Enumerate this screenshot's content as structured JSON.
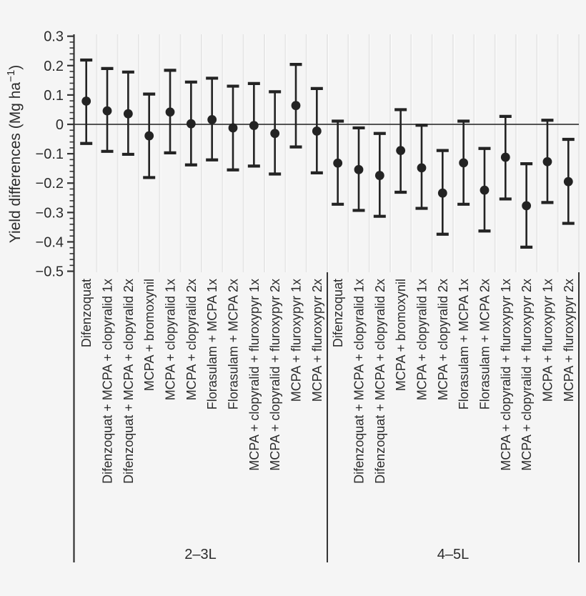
{
  "chart_data": {
    "type": "scatter",
    "subtype": "point-range-errorbar",
    "ylabel_full": "Yield differences (Mg ha−1)",
    "ylabel_main": "Yield differences (Mg ha",
    "ylabel_sup": "−1",
    "ylabel_end": ")",
    "ylim": [
      -0.5035,
      0.3065
    ],
    "yticks": [
      0.3,
      0.2,
      0.1,
      0,
      -0.1,
      -0.2,
      -0.3,
      -0.4,
      -0.5
    ],
    "ytick_labels": [
      "0.3",
      "0.2",
      "0.1",
      "0",
      "−0.1",
      "−0.2",
      "−0.3",
      "−0.4",
      "−0.5"
    ],
    "minor_tick_step": 0.02,
    "zero_reference_line": true,
    "grid": "vertical category separators, light gray",
    "legend": "none",
    "groups": [
      {
        "label": "2–3L",
        "points": [
          {
            "category": "Difenzoquat",
            "estimate": 0.079,
            "lower": -0.065,
            "upper": 0.219
          },
          {
            "category": "Difenzoquat + MCPA + clopyralid 1x",
            "estimate": 0.046,
            "lower": -0.092,
            "upper": 0.19
          },
          {
            "category": "Difenzoquat + MCPA + clopyralid 2x",
            "estimate": 0.036,
            "lower": -0.102,
            "upper": 0.178
          },
          {
            "category": "MCPA + bromoxynil",
            "estimate": -0.039,
            "lower": -0.181,
            "upper": 0.103
          },
          {
            "category": "MCPA + clopyralid 1x",
            "estimate": 0.042,
            "lower": -0.097,
            "upper": 0.184
          },
          {
            "category": "MCPA + clopyralid 2x",
            "estimate": 0.002,
            "lower": -0.138,
            "upper": 0.144
          },
          {
            "category": "Florasulam + MCPA 1x",
            "estimate": 0.016,
            "lower": -0.121,
            "upper": 0.157
          },
          {
            "category": "Florasulam + MCPA 2x",
            "estimate": -0.012,
            "lower": -0.155,
            "upper": 0.13
          },
          {
            "category": "MCPA + clopyralid + fluroxypyr 1x",
            "estimate": -0.004,
            "lower": -0.142,
            "upper": 0.139
          },
          {
            "category": "MCPA + clopyralid + fluroxypyr 2x",
            "estimate": -0.031,
            "lower": -0.169,
            "upper": 0.111
          },
          {
            "category": "MCPA + fluroxypyr 1x",
            "estimate": 0.064,
            "lower": -0.077,
            "upper": 0.204
          },
          {
            "category": "MCPA + fluroxypyr 2x",
            "estimate": -0.023,
            "lower": -0.165,
            "upper": 0.122
          }
        ]
      },
      {
        "label": "4–5L",
        "points": [
          {
            "category": "Difenzoquat",
            "estimate": -0.132,
            "lower": -0.272,
            "upper": 0.011
          },
          {
            "category": "Difenzoquat + MCPA + clopyralid 1x",
            "estimate": -0.154,
            "lower": -0.293,
            "upper": -0.012
          },
          {
            "category": "Difenzoquat + MCPA + clopyralid 2x",
            "estimate": -0.174,
            "lower": -0.313,
            "upper": -0.031
          },
          {
            "category": "MCPA + bromoxynil",
            "estimate": -0.089,
            "lower": -0.231,
            "upper": 0.05
          },
          {
            "category": "MCPA + clopyralid 1x",
            "estimate": -0.148,
            "lower": -0.286,
            "upper": -0.003
          },
          {
            "category": "MCPA + clopyralid 2x",
            "estimate": -0.234,
            "lower": -0.374,
            "upper": -0.089
          },
          {
            "category": "Florasulam + MCPA 1x",
            "estimate": -0.131,
            "lower": -0.272,
            "upper": 0.011
          },
          {
            "category": "Florasulam + MCPA 2x",
            "estimate": -0.224,
            "lower": -0.363,
            "upper": -0.082
          },
          {
            "category": "MCPA + clopyralid + fluroxypyr 1x",
            "estimate": -0.112,
            "lower": -0.254,
            "upper": 0.027
          },
          {
            "category": "MCPA + clopyralid + fluroxypyr 2x",
            "estimate": -0.277,
            "lower": -0.418,
            "upper": -0.134
          },
          {
            "category": "MCPA + fluroxypyr 1x",
            "estimate": -0.127,
            "lower": -0.266,
            "upper": 0.014
          },
          {
            "category": "MCPA + fluroxypyr 2x",
            "estimate": -0.195,
            "lower": -0.337,
            "upper": -0.051
          }
        ]
      }
    ]
  },
  "colors": {
    "background": "#f5f5f5",
    "gridline": "#e7e7e7",
    "gridline_highlight": "#fdfdfd",
    "ink": "#232323",
    "axis": "#333333"
  }
}
